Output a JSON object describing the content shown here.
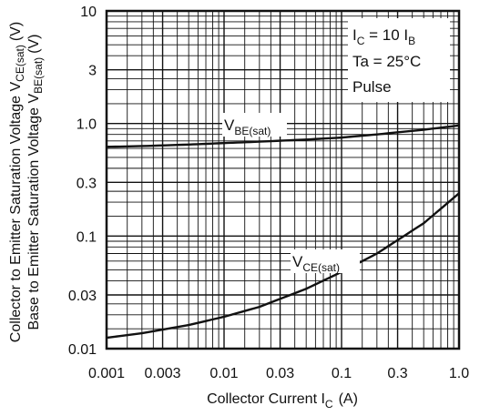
{
  "chart_data": {
    "type": "line",
    "x_scale": "log",
    "y_scale": "log",
    "xlim": [
      0.001,
      1.0
    ],
    "ylim": [
      0.01,
      10
    ],
    "grid": true,
    "x_ticks": [
      {
        "value": 0.001,
        "label": "0.001"
      },
      {
        "value": 0.003,
        "label": "0.003"
      },
      {
        "value": 0.01,
        "label": "0.01"
      },
      {
        "value": 0.03,
        "label": "0.03"
      },
      {
        "value": 0.1,
        "label": "0.1"
      },
      {
        "value": 0.3,
        "label": "0.3"
      },
      {
        "value": 1.0,
        "label": "1.0"
      }
    ],
    "y_ticks": [
      {
        "value": 10,
        "label": "10"
      },
      {
        "value": 3,
        "label": "3"
      },
      {
        "value": 1.0,
        "label": "1.0"
      },
      {
        "value": 0.3,
        "label": "0.3"
      },
      {
        "value": 0.1,
        "label": "0.1"
      },
      {
        "value": 0.03,
        "label": "0.03"
      },
      {
        "value": 0.01,
        "label": "0.01"
      }
    ],
    "xlabel": {
      "main": "Collector Current I",
      "sub": "C",
      "unit": "(A)"
    },
    "ylabel_lines": [
      {
        "main": "Collector to Emitter Saturation Voltage V",
        "sub": "CE(sat)",
        "unit": "(V)"
      },
      {
        "main": "Base to Emitter Saturation Voltage V",
        "sub": "BE(sat)",
        "unit": "(V)"
      }
    ],
    "conditions": [
      {
        "main": "I",
        "sub": "C",
        "rest": " = 10 I",
        "sub2": "B"
      },
      {
        "main": "Ta = 25°C",
        "sub": "",
        "rest": "",
        "sub2": ""
      },
      {
        "main": "Pulse",
        "sub": "",
        "rest": "",
        "sub2": ""
      }
    ],
    "series": [
      {
        "label_main": "V",
        "label_sub": "BE(sat)",
        "x": [
          0.001,
          0.002,
          0.005,
          0.01,
          0.02,
          0.05,
          0.1,
          0.2,
          0.5,
          1.0
        ],
        "y": [
          0.62,
          0.63,
          0.65,
          0.67,
          0.69,
          0.72,
          0.75,
          0.8,
          0.88,
          0.96
        ]
      },
      {
        "label_main": "V",
        "label_sub": "CE(sat)",
        "x": [
          0.001,
          0.002,
          0.005,
          0.01,
          0.02,
          0.05,
          0.1,
          0.2,
          0.5,
          1.0
        ],
        "y": [
          0.0125,
          0.0137,
          0.0162,
          0.0192,
          0.0235,
          0.034,
          0.048,
          0.07,
          0.13,
          0.24
        ]
      }
    ]
  }
}
